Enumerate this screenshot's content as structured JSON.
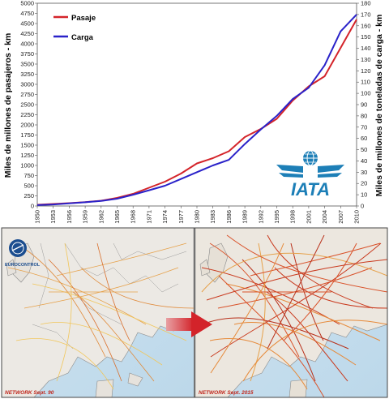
{
  "chart_data": {
    "type": "line",
    "x": [
      1950,
      1953,
      1956,
      1959,
      1962,
      1965,
      1968,
      1971,
      1974,
      1977,
      1980,
      1983,
      1986,
      1989,
      1992,
      1995,
      1998,
      2001,
      2004,
      2007,
      2010
    ],
    "xlim": [
      1950,
      2010
    ],
    "ylabel": "Miles de millones de pasajeros - km",
    "ylabel_right": "Miles de millones de toneladas de carga - km",
    "ylim": [
      0,
      5000
    ],
    "ylim_right": [
      0,
      180
    ],
    "yticks": [
      0,
      250,
      500,
      750,
      1000,
      1250,
      1500,
      1750,
      2000,
      2250,
      2500,
      2750,
      3000,
      3250,
      3500,
      3750,
      4000,
      4250,
      4500,
      4750,
      5000
    ],
    "yticks_right": [
      0,
      10,
      20,
      30,
      40,
      50,
      60,
      70,
      80,
      90,
      100,
      110,
      120,
      130,
      140,
      150,
      160,
      170,
      180
    ],
    "grid": false,
    "legend_position": "top-left",
    "series": [
      {
        "name": "Pasaje",
        "axis": "left",
        "color": "#d4242a",
        "values": [
          30,
          50,
          70,
          95,
          130,
          200,
          300,
          450,
          600,
          800,
          1050,
          1180,
          1350,
          1700,
          1900,
          2150,
          2600,
          2950,
          3200,
          3900,
          4600
        ]
      },
      {
        "name": "Carga",
        "axis": "right",
        "color": "#2a22c9",
        "values": [
          0.8,
          1.4,
          2.4,
          3.3,
          4.5,
          6.5,
          10,
          14,
          18,
          24,
          30,
          36,
          41,
          55,
          68,
          80,
          95,
          105,
          125,
          155,
          170
        ]
      }
    ]
  },
  "logo": {
    "iata_text": "IATA",
    "iata_color": "#1d7fb7",
    "eurocontrol_text": "EUROCONTROL"
  },
  "maps": {
    "left_caption": "NETWORK Sept. 90",
    "right_caption": "NETWORK Sept. 2015",
    "arrow_color": "#d3232a"
  }
}
